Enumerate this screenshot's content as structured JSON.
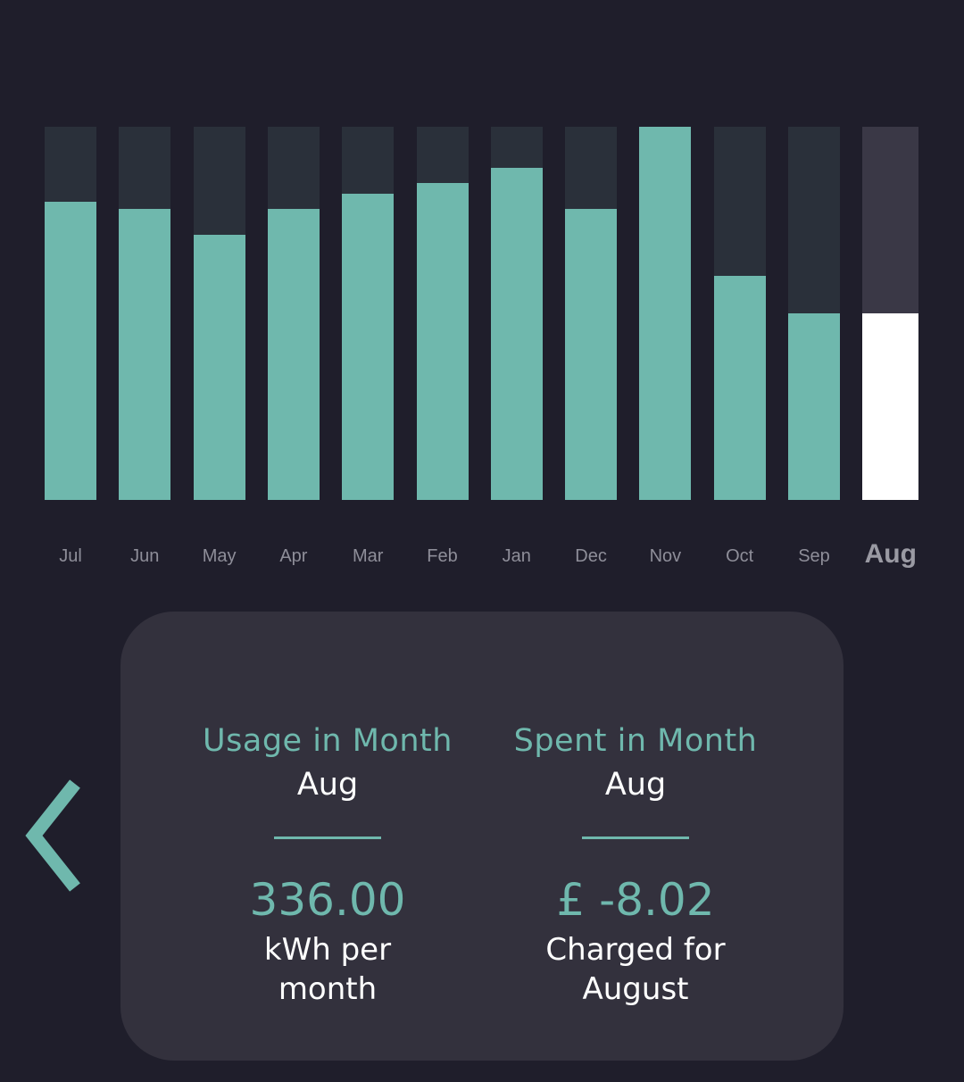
{
  "chart_data": {
    "type": "bar",
    "categories": [
      "Jul",
      "Jun",
      "May",
      "Apr",
      "Mar",
      "Feb",
      "Jan",
      "Dec",
      "Nov",
      "Oct",
      "Sep",
      "Aug"
    ],
    "values": [
      0.8,
      0.78,
      0.71,
      0.78,
      0.82,
      0.85,
      0.89,
      0.78,
      1.0,
      0.6,
      0.5,
      0.5
    ],
    "selected_category": "Aug",
    "ylim": [
      0,
      1
    ],
    "grid": false,
    "title": "",
    "xlabel": "",
    "ylabel": ""
  },
  "colors": {
    "background": "#1f1e2b",
    "bar_fill": "#6fb8ad",
    "bar_track": "#2a303a",
    "selected_fill": "#ffffff",
    "selected_track": "#3a3846",
    "card": "#33313d",
    "accent": "#6fb8ad"
  },
  "usage": {
    "title": "Usage in Month",
    "month": "Aug",
    "value": "336.00",
    "caption": "kWh per month"
  },
  "spent": {
    "title": "Spent in Month",
    "month": "Aug",
    "value": "£ -8.02",
    "caption": "Charged for August"
  },
  "navigation": {
    "back_icon": "chevron-left-icon"
  }
}
